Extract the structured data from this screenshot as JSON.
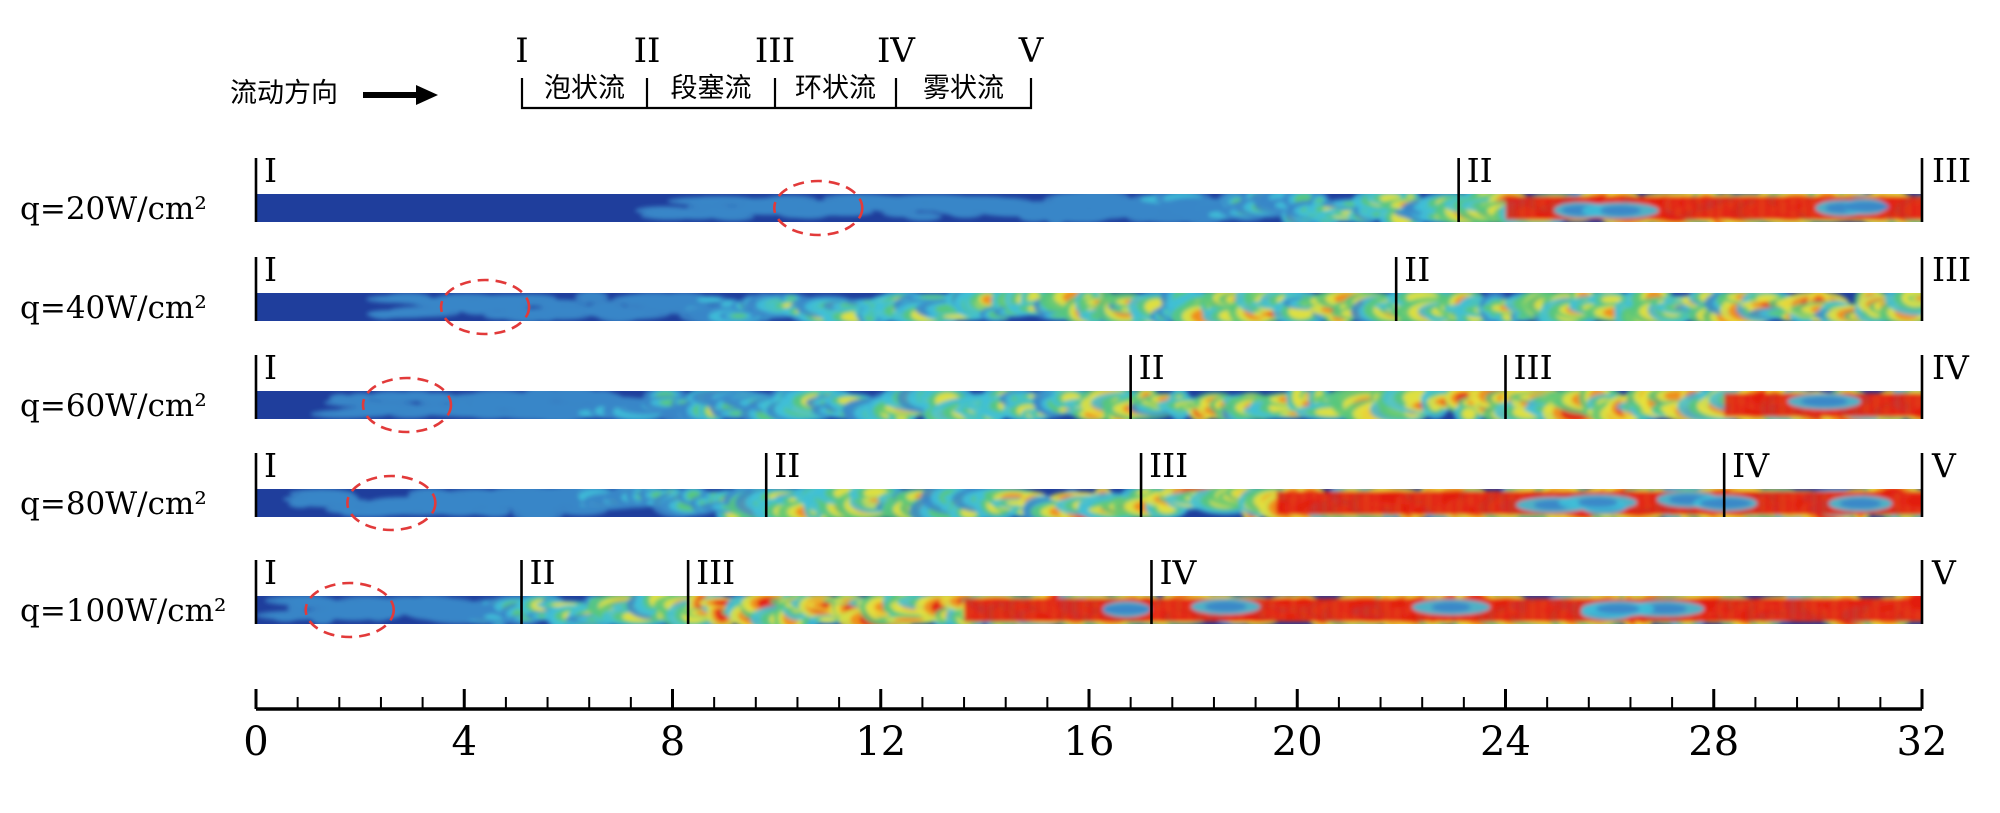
{
  "flow_direction": {
    "label": "流动方向"
  },
  "legend": {
    "markers": [
      "I",
      "II",
      "III",
      "IV",
      "V"
    ],
    "regimes": [
      "泡状流",
      "段塞流",
      "环状流",
      "雾状流"
    ]
  },
  "colors": {
    "background_liquid": "#1f3e9c",
    "deep_blue": "#2547a8",
    "light_blue": "#3a86c8",
    "cyan": "#3fbfd8",
    "green": "#58c77a",
    "yellow": "#e6e13c",
    "orange": "#f08a1c",
    "vapor_red": "#e21b12",
    "bubble_circle": "#e23a3a"
  },
  "axis": {
    "min": 0,
    "max": 32,
    "major_ticks": [
      0,
      4,
      8,
      12,
      16,
      20,
      24,
      28,
      32
    ],
    "minor_step": 0.8
  },
  "channels": [
    {
      "heat_flux_label": "q=20W/cm²",
      "bubble_circle_at": 10.8,
      "transitions": [
        {
          "label": "I",
          "x": 0
        },
        {
          "label": "II",
          "x": 23.1
        },
        {
          "label": "III",
          "x": 32
        }
      ]
    },
    {
      "heat_flux_label": "q=40W/cm²",
      "bubble_circle_at": 4.4,
      "transitions": [
        {
          "label": "I",
          "x": 0
        },
        {
          "label": "II",
          "x": 21.9
        },
        {
          "label": "III",
          "x": 32
        }
      ]
    },
    {
      "heat_flux_label": "q=60W/cm²",
      "bubble_circle_at": 2.9,
      "transitions": [
        {
          "label": "I",
          "x": 0
        },
        {
          "label": "II",
          "x": 16.8
        },
        {
          "label": "III",
          "x": 24.0
        },
        {
          "label": "IV",
          "x": 32
        }
      ]
    },
    {
      "heat_flux_label": "q=80W/cm²",
      "bubble_circle_at": 2.6,
      "transitions": [
        {
          "label": "I",
          "x": 0
        },
        {
          "label": "II",
          "x": 9.8
        },
        {
          "label": "III",
          "x": 17.0
        },
        {
          "label": "IV",
          "x": 28.2
        },
        {
          "label": "V",
          "x": 32
        }
      ]
    },
    {
      "heat_flux_label": "q=100W/cm²",
      "bubble_circle_at": 1.8,
      "transitions": [
        {
          "label": "I",
          "x": 0
        },
        {
          "label": "II",
          "x": 5.1
        },
        {
          "label": "III",
          "x": 8.3
        },
        {
          "label": "IV",
          "x": 17.2
        },
        {
          "label": "V",
          "x": 32
        }
      ]
    }
  ]
}
